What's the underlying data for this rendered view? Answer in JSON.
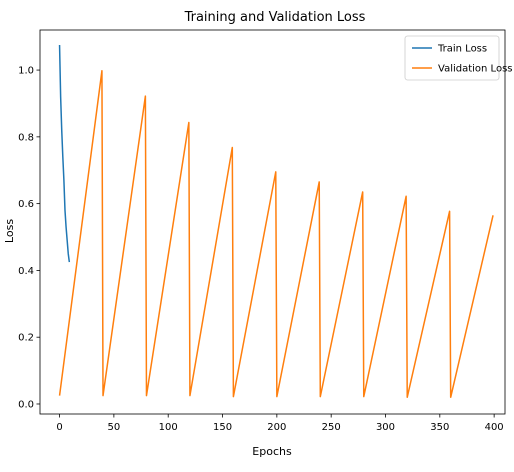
{
  "chart_data": {
    "type": "line",
    "title": "Training and Validation Loss",
    "xlabel": "Epochs",
    "ylabel": "Loss",
    "xlim": [
      -18,
      410
    ],
    "ylim": [
      -0.03,
      1.12
    ],
    "x_ticks": [
      0,
      50,
      100,
      150,
      200,
      250,
      300,
      350,
      400
    ],
    "x_tick_labels": [
      "0",
      "50",
      "100",
      "150",
      "200",
      "250",
      "300",
      "350",
      "400"
    ],
    "y_ticks": [
      0.0,
      0.2,
      0.4,
      0.6,
      0.8,
      1.0
    ],
    "y_tick_labels": [
      "0.0",
      "0.2",
      "0.4",
      "0.6",
      "0.8",
      "1.0"
    ],
    "grid": false,
    "legend_position": "top-right",
    "series": [
      {
        "name": "Train Loss",
        "color": "#1f77b4",
        "x": [
          0,
          1,
          2,
          3,
          4,
          5,
          6,
          7,
          8,
          9
        ],
        "y": [
          1.075,
          0.92,
          0.82,
          0.74,
          0.67,
          0.58,
          0.53,
          0.49,
          0.45,
          0.425
        ]
      },
      {
        "name": "Validation Loss",
        "color": "#ff7f0e",
        "x": [
          0,
          39,
          40,
          79,
          80,
          119,
          120,
          159,
          160,
          199,
          200,
          239,
          240,
          279,
          280,
          319,
          320,
          359,
          360,
          399
        ],
        "y": [
          0.025,
          0.998,
          0.025,
          0.922,
          0.025,
          0.843,
          0.025,
          0.768,
          0.022,
          0.695,
          0.022,
          0.665,
          0.022,
          0.635,
          0.022,
          0.622,
          0.02,
          0.577,
          0.02,
          0.565
        ]
      }
    ]
  }
}
